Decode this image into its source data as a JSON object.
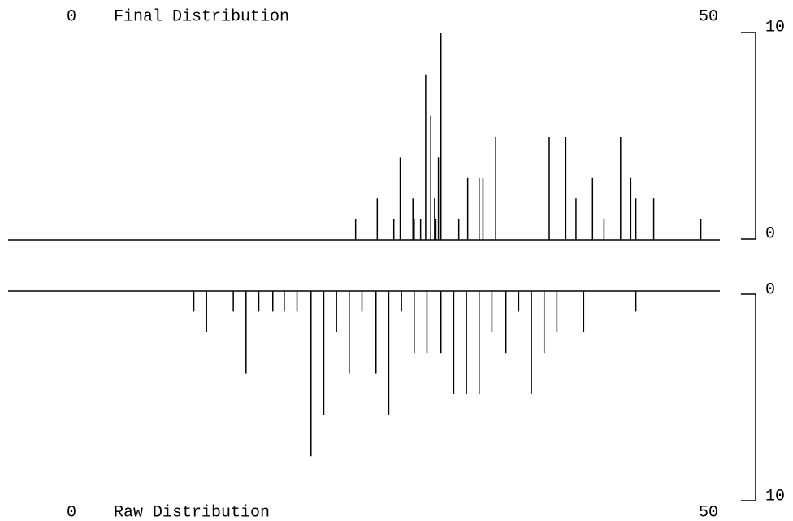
{
  "chart_data": [
    {
      "type": "needle",
      "title": "Final Distribution",
      "x": [
        22.3,
        24.0,
        25.3,
        25.8,
        26.8,
        26.9,
        27.4,
        27.8,
        28.2,
        28.5,
        28.6,
        28.8,
        29.0,
        30.4,
        31.1,
        32.0,
        32.3,
        33.3,
        37.5,
        38.8,
        39.6,
        40.9,
        41.8,
        43.1,
        43.9,
        44.3,
        45.7,
        49.4
      ],
      "values": [
        1,
        2,
        1,
        4,
        2,
        1,
        1,
        8,
        6,
        2,
        1,
        4,
        10,
        1,
        3,
        3,
        3,
        5,
        5,
        5,
        2,
        3,
        1,
        5,
        3,
        2,
        2,
        1
      ],
      "xlim": [
        0,
        50
      ],
      "xticks": [
        0,
        50
      ],
      "ylim": [
        0,
        10
      ],
      "yticks": [
        0,
        10
      ],
      "y_inverted": false,
      "color": "#000000"
    },
    {
      "type": "needle",
      "title": "Raw Distribution",
      "x": [
        9.6,
        10.6,
        12.7,
        13.7,
        14.7,
        15.8,
        16.7,
        17.7,
        18.8,
        19.8,
        20.8,
        21.8,
        22.8,
        23.9,
        24.9,
        25.9,
        26.9,
        27.9,
        29.0,
        30.0,
        31.0,
        32.0,
        33.0,
        34.1,
        35.1,
        36.1,
        37.1,
        38.1,
        40.2,
        44.3
      ],
      "values": [
        1,
        2,
        1,
        4,
        1,
        1,
        1,
        1,
        8,
        6,
        2,
        4,
        1,
        4,
        6,
        1,
        3,
        3,
        3,
        5,
        5,
        5,
        2,
        3,
        1,
        5,
        3,
        2,
        2,
        1
      ],
      "xlim": [
        0,
        50
      ],
      "xticks": [
        0,
        50
      ],
      "ylim": [
        0,
        10
      ],
      "yticks": [
        0,
        10
      ],
      "y_inverted": true,
      "color": "#000000"
    }
  ]
}
